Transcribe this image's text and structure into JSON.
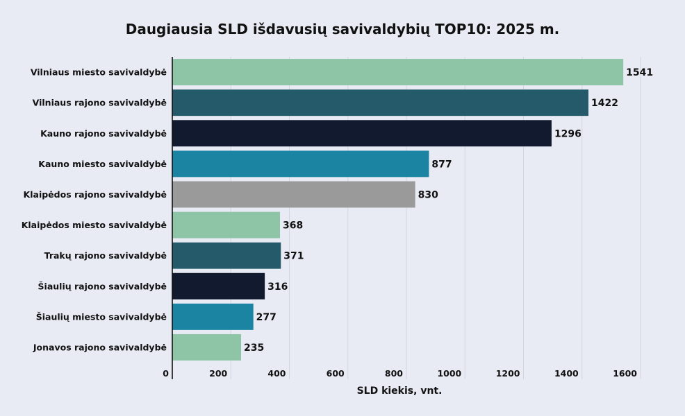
{
  "chart_data": {
    "type": "bar",
    "orientation": "horizontal",
    "title": "Daugiausia SLD  išdavusių savivaldybių TOP10: 2025 m.",
    "xlabel": "SLD kiekis, vnt.",
    "ylabel": "",
    "xlim": [
      0,
      1600
    ],
    "xticks": [
      0,
      200,
      400,
      600,
      800,
      1000,
      1200,
      1400,
      1600
    ],
    "grid": "vertical",
    "categories": [
      "Vilniaus miesto savivaldybė",
      "Vilniaus rajono savivaldybė",
      "Kauno rajono savivaldybė",
      "Kauno miesto savivaldybė",
      "Klaipėdos rajono savivaldybė",
      "Klaipėdos miesto savivaldybė",
      "Trakų rajono savivaldybė",
      "Šiaulių rajono savivaldybė",
      "Šiaulių miesto savivaldybė",
      "Jonavos rajono savivaldybė"
    ],
    "values": [
      1541,
      1422,
      1296,
      877,
      830,
      368,
      371,
      316,
      277,
      235
    ],
    "colors": [
      "#8fc5a7",
      "#245a69",
      "#111a2e",
      "#1b84a3",
      "#9a9a9b",
      "#8fc5a7",
      "#245a69",
      "#111a2e",
      "#1b84a3",
      "#8fc5a7"
    ]
  }
}
